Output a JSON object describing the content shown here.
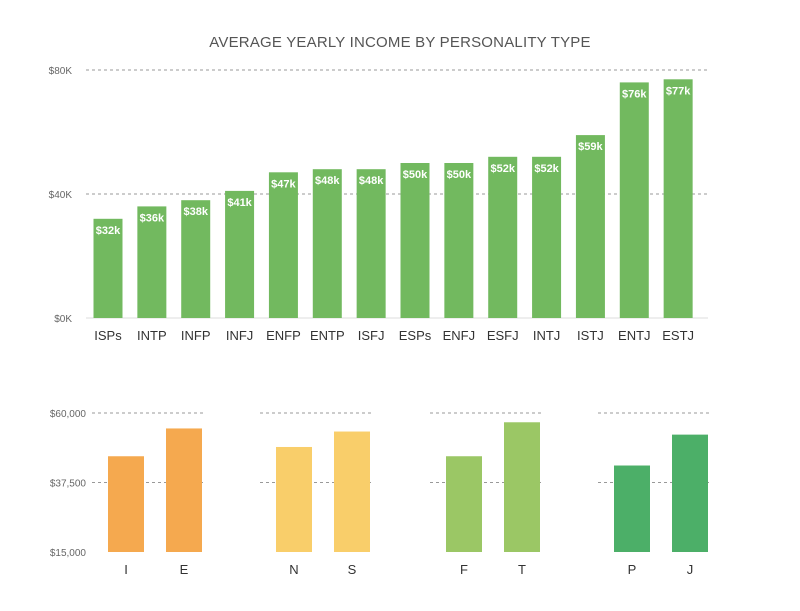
{
  "chart_data": [
    {
      "type": "bar",
      "title": "AVERAGE YEARLY INCOME BY PERSONALITY TYPE",
      "categories": [
        "ISPs",
        "INTP",
        "INFP",
        "INFJ",
        "ENFP",
        "ENTP",
        "ISFJ",
        "ESPs",
        "ENFJ",
        "ESFJ",
        "INTJ",
        "ISTJ",
        "ENTJ",
        "ESTJ"
      ],
      "values": [
        32000,
        36000,
        38000,
        41000,
        47000,
        48000,
        48000,
        50000,
        50000,
        52000,
        52000,
        59000,
        76000,
        77000
      ],
      "data_labels": [
        "$32k",
        "$36k",
        "$38k",
        "$41k",
        "$47k",
        "$48k",
        "$48k",
        "$50k",
        "$50k",
        "$52k",
        "$52k",
        "$59k",
        "$76k",
        "$77k"
      ],
      "ylim": [
        0,
        80000
      ],
      "y_ticks": [
        0,
        40000,
        80000
      ],
      "y_tick_labels": [
        "$0K",
        "$40K",
        "$80K"
      ],
      "color": "#72b95f",
      "grid": true
    },
    {
      "type": "bar",
      "groups": [
        {
          "categories": [
            "I",
            "E"
          ],
          "values": [
            46000,
            55000
          ],
          "color": "#f5a94f"
        },
        {
          "categories": [
            "N",
            "S"
          ],
          "values": [
            49000,
            54000
          ],
          "color": "#f9ce6a"
        },
        {
          "categories": [
            "F",
            "T"
          ],
          "values": [
            46000,
            57000
          ],
          "color": "#9bc765"
        },
        {
          "categories": [
            "P",
            "J"
          ],
          "values": [
            43000,
            53000
          ],
          "color": "#4caf68"
        }
      ],
      "ylim": [
        15000,
        60000
      ],
      "y_ticks": [
        15000,
        37500,
        60000
      ],
      "y_tick_labels": [
        "$15,000",
        "$37,500",
        "$60,000"
      ],
      "grid": true
    }
  ]
}
